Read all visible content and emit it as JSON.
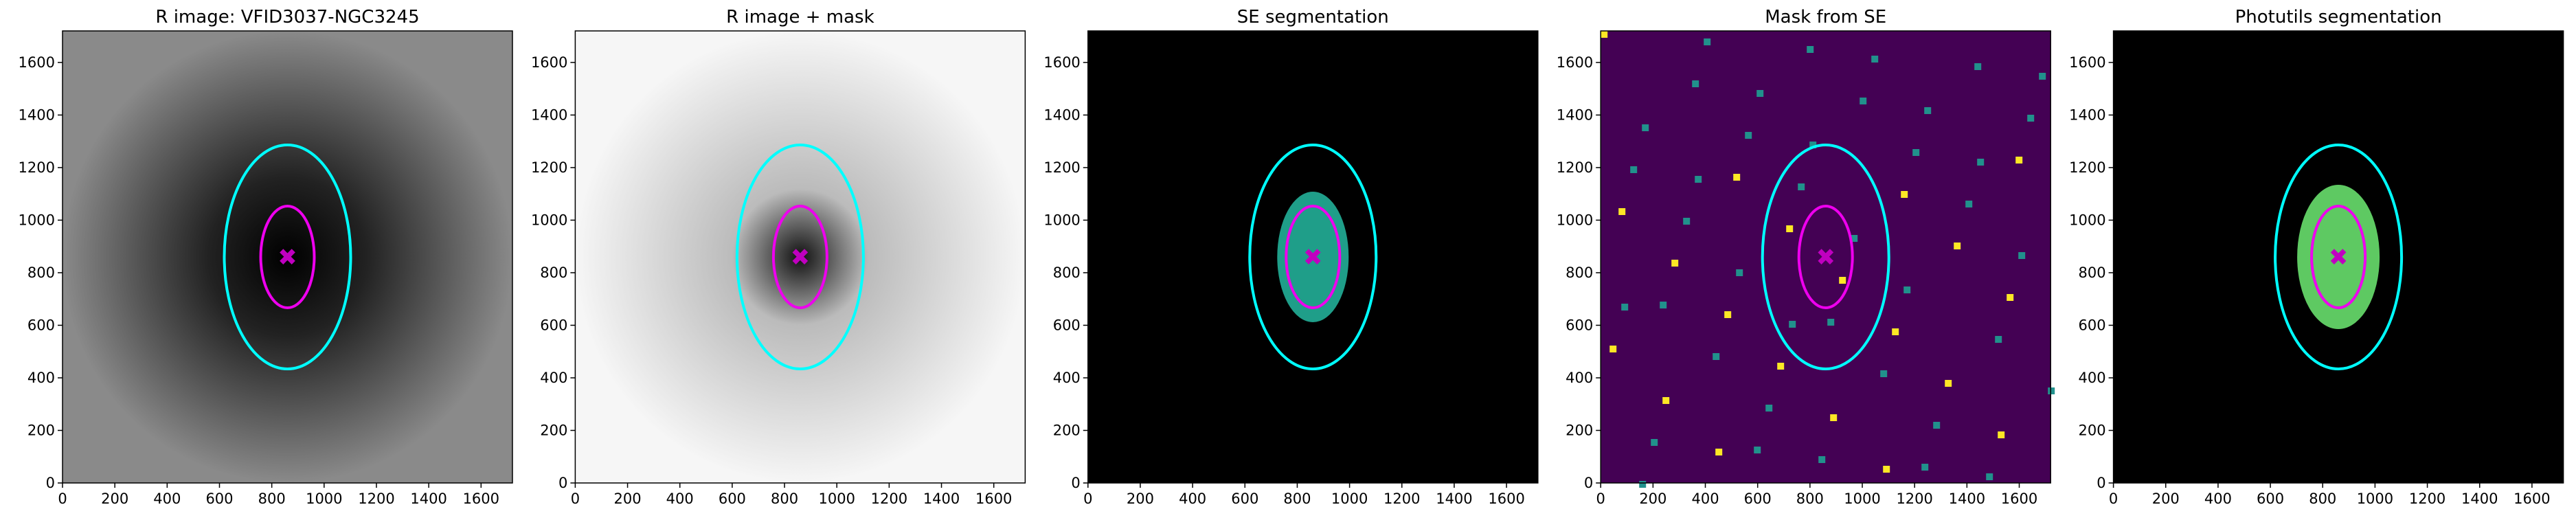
{
  "chart_data": [
    {
      "type": "image",
      "title": "R image: VFID3037-NGC3245",
      "xlim": [
        0,
        1720
      ],
      "ylim": [
        0,
        1720
      ],
      "xticks": [
        0,
        200,
        400,
        600,
        800,
        1000,
        1200,
        1400,
        1600
      ],
      "yticks": [
        0,
        200,
        400,
        600,
        800,
        1000,
        1200,
        1400,
        1600
      ]
    },
    {
      "type": "image",
      "title": "R image + mask",
      "xlim": [
        0,
        1720
      ],
      "ylim": [
        0,
        1720
      ],
      "xticks": [
        0,
        200,
        400,
        600,
        800,
        1000,
        1200,
        1400,
        1600
      ],
      "yticks": [
        0,
        200,
        400,
        600,
        800,
        1000,
        1200,
        1400,
        1600
      ]
    },
    {
      "type": "image",
      "title": "SE segmentation",
      "xlim": [
        0,
        1720
      ],
      "ylim": [
        0,
        1720
      ],
      "xticks": [
        0,
        200,
        400,
        600,
        800,
        1000,
        1200,
        1400,
        1600
      ],
      "yticks": [
        0,
        200,
        400,
        600,
        800,
        1000,
        1200,
        1400,
        1600
      ]
    },
    {
      "type": "image",
      "title": "Mask from SE",
      "xlim": [
        0,
        1720
      ],
      "ylim": [
        0,
        1720
      ],
      "xticks": [
        0,
        200,
        400,
        600,
        800,
        1000,
        1200,
        1400,
        1600
      ],
      "yticks": [
        0,
        200,
        400,
        600,
        800,
        1000,
        1200,
        1400,
        1600
      ]
    },
    {
      "type": "image",
      "title": "Photutils segmentation",
      "xlim": [
        0,
        1720
      ],
      "ylim": [
        0,
        1720
      ],
      "xticks": [
        0,
        200,
        400,
        600,
        800,
        1000,
        1200,
        1400,
        1600
      ],
      "yticks": [
        0,
        200,
        400,
        600,
        800,
        1000,
        1200,
        1400,
        1600
      ]
    }
  ]
}
